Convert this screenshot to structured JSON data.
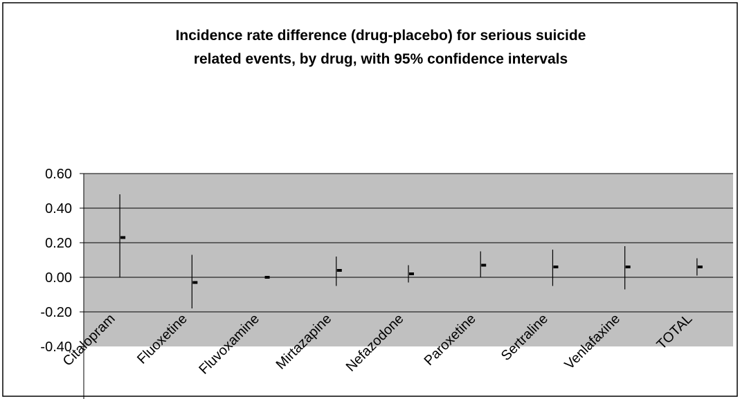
{
  "chart_data": {
    "type": "error-bar",
    "title_lines": [
      "Incidence rate difference (drug-placebo) for serious suicide",
      "related events, by drug, with 95% confidence intervals"
    ],
    "xlabel": "",
    "ylabel": "",
    "categories": [
      "Citalopram",
      "Fluoxetine",
      "Fluvoxamine",
      "Mirtazapine",
      "Nefazodone",
      "Paroxetine",
      "Sertraline",
      "Venlafaxine",
      "TOTAL"
    ],
    "estimate": [
      0.23,
      -0.03,
      0.0,
      0.04,
      0.02,
      0.07,
      0.06,
      0.06,
      0.06
    ],
    "ci_lower": [
      0.0,
      -0.18,
      0.0,
      -0.05,
      -0.03,
      0.0,
      -0.05,
      -0.07,
      0.01
    ],
    "ci_upper": [
      0.48,
      0.13,
      0.0,
      0.12,
      0.07,
      0.15,
      0.16,
      0.18,
      0.11
    ],
    "ylim": [
      -0.4,
      0.6
    ],
    "yticks": [
      "0.60",
      "0.40",
      "0.20",
      "0.00",
      "-0.20",
      "-0.40"
    ],
    "ytick_values": [
      0.6,
      0.4,
      0.2,
      0.0,
      -0.2,
      -0.4
    ],
    "grid": true,
    "plot_bg": "#c0c0c0",
    "bar_color": "#000000"
  }
}
